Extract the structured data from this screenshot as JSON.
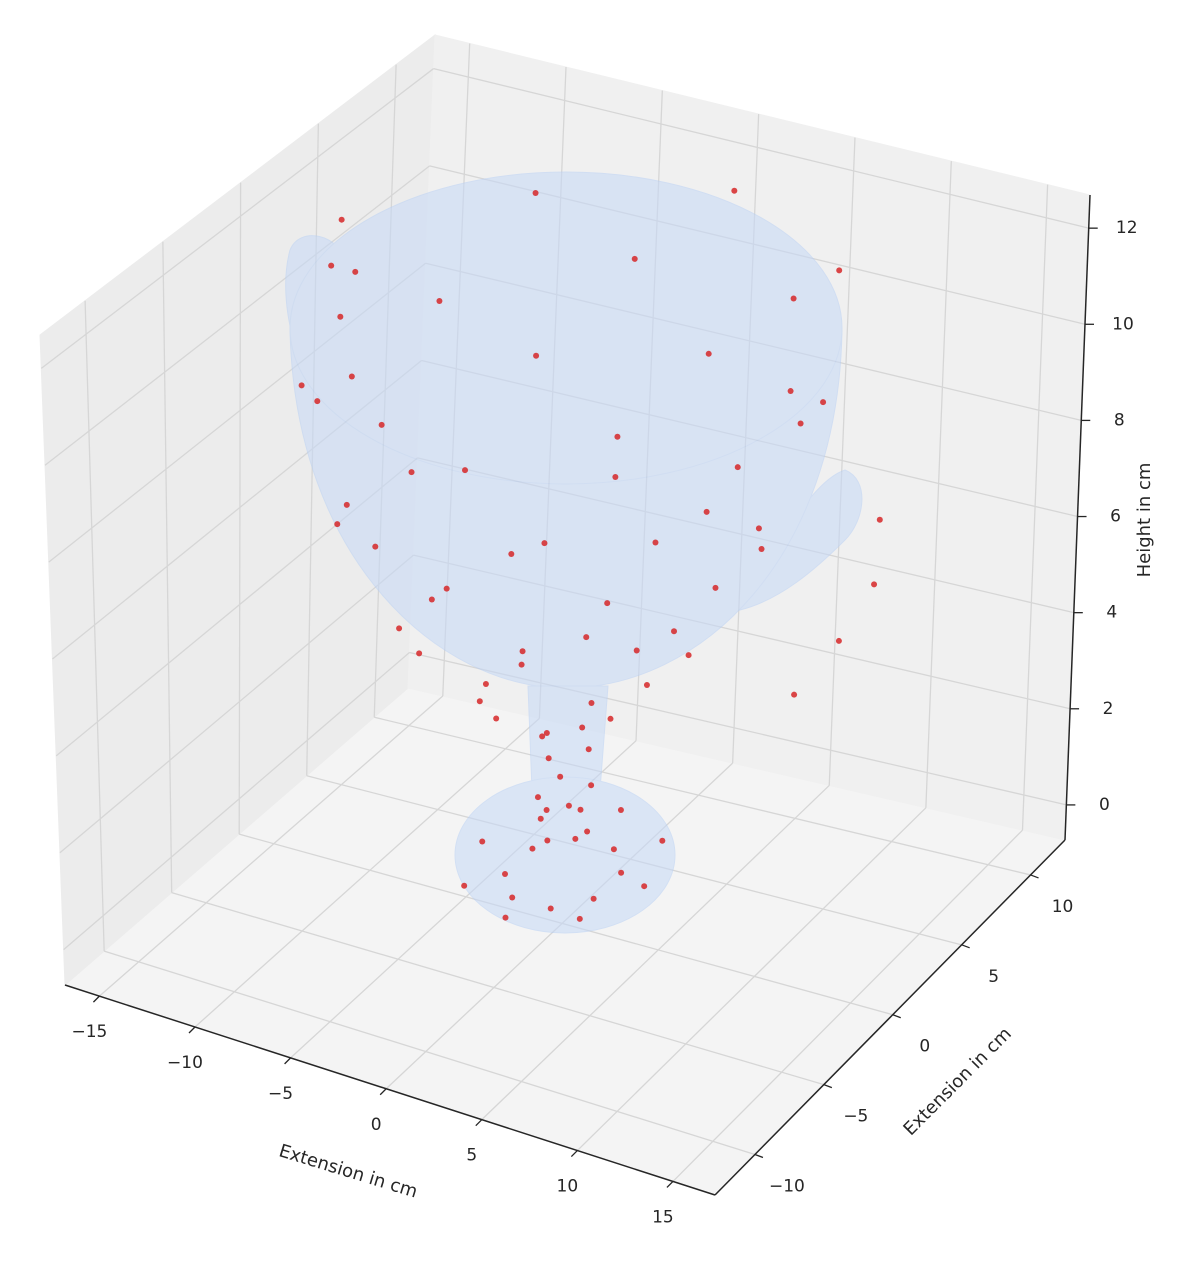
{
  "chart_data": {
    "type": "scatter3d",
    "xlabel": "Extension in cm",
    "ylabel": "Extension in cm",
    "zlabel": "Height in cm",
    "color": "#d62728",
    "grid": true,
    "xlim": [
      -16.8,
      17.2
    ],
    "ylim": [
      -12.9,
      12.5
    ],
    "zlim": [
      -0.73,
      12.69
    ],
    "xticks": [
      {
        "value": -15,
        "label": "−15"
      },
      {
        "value": -10,
        "label": "−10"
      },
      {
        "value": -5,
        "label": "−5"
      },
      0,
      5,
      10,
      15
    ],
    "yticks": [
      {
        "value": -10,
        "label": "−10"
      },
      {
        "value": -5,
        "label": "−5"
      },
      0,
      5,
      10
    ],
    "zticks": [
      0,
      2,
      4,
      6,
      8,
      10,
      12
    ],
    "x": [
      11,
      7.8,
      0,
      -7.8,
      -11,
      -7.8,
      0,
      7.8,
      9.8,
      4.1,
      -4.1,
      -9.8,
      -9.8,
      -4.1,
      4.1,
      9.8,
      9.6,
      6.8,
      0,
      -6.8,
      -9.6,
      -6.8,
      0,
      6.8,
      7.6,
      3.1,
      -3.1,
      -7.6,
      -7.6,
      -3.1,
      3.1,
      7.6,
      6.2,
      4.4,
      0,
      -4.4,
      -6.2,
      -4.4,
      0,
      4.4,
      3.2,
      1.3,
      -1.3,
      -3.2,
      -3.2,
      -1.3,
      1.3,
      3.2,
      1.2,
      0,
      -1.2,
      0,
      0.8,
      -0.8,
      -0.8,
      0.8,
      1.2,
      0,
      -1.2,
      0,
      4.2,
      3,
      0,
      -3,
      -4.2,
      -3,
      0,
      3,
      2.3,
      1,
      -1,
      -2.3,
      -2.3,
      -1,
      1,
      2.3,
      -14,
      -14.5,
      -14,
      -13,
      15,
      15.5,
      14.5,
      13
    ],
    "y": [
      0,
      7.8,
      11,
      7.8,
      0,
      -7.8,
      -11,
      -7.8,
      4.1,
      9.8,
      9.8,
      4.1,
      -4.1,
      -9.8,
      -9.8,
      -4.1,
      0,
      6.8,
      9.6,
      6.8,
      0,
      -6.8,
      -9.6,
      -6.8,
      3.1,
      7.6,
      7.6,
      3.1,
      -3.1,
      -7.6,
      -7.6,
      -3.1,
      0,
      4.4,
      6.2,
      4.4,
      0,
      -4.4,
      -6.2,
      -4.4,
      1.3,
      3.2,
      3.2,
      1.3,
      -1.3,
      -3.2,
      -3.2,
      -1.3,
      0,
      1.2,
      0,
      -1.2,
      0.8,
      0.8,
      -0.8,
      -0.8,
      0,
      1.2,
      0,
      -1.2,
      0,
      3,
      4.2,
      3,
      0,
      -3,
      -4.2,
      -3,
      1,
      2.3,
      2.3,
      1,
      -1,
      -2.3,
      -2.3,
      -1,
      3,
      3,
      3,
      2.5,
      1,
      0,
      -1,
      -2
    ],
    "z": [
      11.5,
      11.5,
      11.5,
      11.5,
      11.5,
      11.5,
      11.5,
      11.5,
      10,
      10,
      10,
      10,
      10,
      10,
      10,
      10,
      8.5,
      8.5,
      8.5,
      8.5,
      8.5,
      8.5,
      8.5,
      8.5,
      7,
      7,
      7,
      7,
      7,
      7,
      7,
      7,
      5.5,
      5.5,
      5.5,
      5.5,
      5.5,
      5.5,
      5.5,
      5.5,
      4.2,
      4.2,
      4.2,
      4.2,
      4.2,
      4.2,
      4.2,
      4.2,
      3,
      3,
      3,
      3,
      2,
      2,
      2,
      2,
      1.3,
      1.3,
      1.3,
      1.3,
      0.5,
      0.5,
      0.5,
      0.5,
      0.5,
      0.5,
      0.5,
      0.5,
      0.3,
      0.3,
      0.3,
      0.3,
      0.3,
      0.3,
      0.3,
      0.3,
      11.5,
      10.5,
      9.5,
      8.5,
      9,
      8,
      7,
      6
    ]
  }
}
